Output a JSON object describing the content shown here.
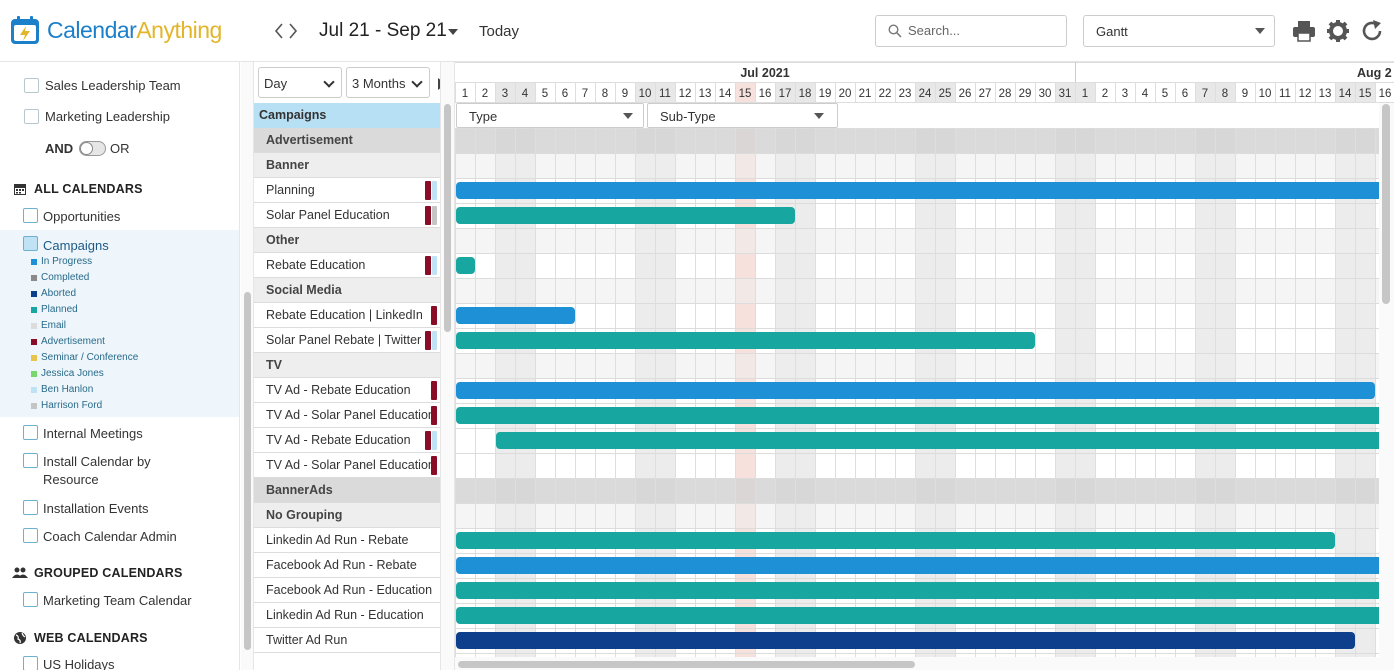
{
  "brand": {
    "part1": "Calendar",
    "part2": "Anything"
  },
  "toolbar": {
    "prev": "‹",
    "next": "›",
    "range": "Jul 21 - Sep 21",
    "today": "Today",
    "search_placeholder": "Search...",
    "view": "Gantt"
  },
  "sidebar": {
    "top_items": [
      "Sales Leadership Team",
      "Marketing Leadership"
    ],
    "and_label": "AND",
    "or_label": "OR",
    "all_calendars": "ALL CALENDARS",
    "calendars": [
      "Opportunities",
      "Campaigns"
    ],
    "legend": [
      {
        "label": "In Progress",
        "color": "#1e90d6"
      },
      {
        "label": "Completed",
        "color": "#8a8a8a"
      },
      {
        "label": "Aborted",
        "color": "#0d3f8c"
      },
      {
        "label": "Planned",
        "color": "#18a6a0"
      },
      {
        "label": "Email",
        "color": "#dcdcdc"
      },
      {
        "label": "Advertisement",
        "color": "#8a0d28"
      },
      {
        "label": "Seminar / Conference",
        "color": "#e8c548"
      },
      {
        "label": "Jessica Jones",
        "color": "#78d86e"
      },
      {
        "label": "Ben Hanlon",
        "color": "#bfe2f4"
      },
      {
        "label": "Harrison Ford",
        "color": "#c5c5c5"
      }
    ],
    "more_calendars": [
      "Internal Meetings",
      "Install Calendar by",
      "Resource",
      "Installation Events",
      "Coach Calendar Admin"
    ],
    "grouped_calendars": "GROUPED CALENDARS",
    "grouped": [
      "Marketing Team Calendar"
    ],
    "web_calendars": "WEB CALENDARS",
    "web": [
      "US Holidays"
    ]
  },
  "gantt": {
    "scale": "Day",
    "span": "3 Months",
    "header": "Campaigns",
    "filters": [
      "Type",
      "Sub-Type"
    ],
    "months": [
      "Jul 2021",
      "Aug 2"
    ],
    "days": [
      "1",
      "2",
      "3",
      "4",
      "5",
      "6",
      "7",
      "8",
      "9",
      "10",
      "11",
      "12",
      "13",
      "14",
      "15",
      "16",
      "17",
      "18",
      "19",
      "20",
      "21",
      "22",
      "23",
      "24",
      "25",
      "26",
      "27",
      "28",
      "29",
      "30",
      "31",
      "1",
      "2",
      "3",
      "4",
      "5",
      "6",
      "7",
      "8",
      "9",
      "10",
      "11",
      "12",
      "13",
      "14",
      "15",
      "16"
    ],
    "weekend_cols": [
      2,
      3,
      9,
      10,
      16,
      17,
      23,
      24,
      30,
      31,
      37,
      38,
      44,
      45
    ],
    "today_col": 14,
    "rows": [
      {
        "label": "Advertisement",
        "kind": "grp1"
      },
      {
        "label": "Banner",
        "kind": "grp2"
      },
      {
        "label": "Planning",
        "kind": "item",
        "marker": "#8a0d28",
        "marker2": "#bfe2f4",
        "bar": {
          "start": 0,
          "end": 46.5,
          "color": "#1e90d6"
        }
      },
      {
        "label": "Solar Panel Education",
        "kind": "item",
        "marker": "#8a0d28",
        "marker2": "#c5c5c5",
        "bar": {
          "start": 0,
          "end": 17,
          "color": "#18a6a0"
        }
      },
      {
        "label": "Other",
        "kind": "grp2"
      },
      {
        "label": "Rebate Education",
        "kind": "item",
        "marker": "#8a0d28",
        "marker2": "#bfe2f4",
        "bar": {
          "start": 0,
          "end": 1,
          "color": "#18a6a0"
        }
      },
      {
        "label": "Social Media",
        "kind": "grp2"
      },
      {
        "label": "Rebate Education | LinkedIn",
        "kind": "item",
        "marker": "#8a0d28",
        "bar": {
          "start": 0,
          "end": 6,
          "color": "#1e90d6"
        }
      },
      {
        "label": "Solar Panel Rebate | Twitter",
        "kind": "item",
        "marker": "#8a0d28",
        "marker2": "#bfe2f4",
        "bar": {
          "start": 0,
          "end": 29,
          "color": "#18a6a0"
        }
      },
      {
        "label": "TV",
        "kind": "grp2"
      },
      {
        "label": "TV Ad - Rebate Education",
        "kind": "item",
        "marker": "#8a0d28",
        "bar": {
          "start": 0,
          "end": 46,
          "color": "#1e90d6"
        }
      },
      {
        "label": "TV Ad - Solar Panel Education",
        "kind": "item",
        "marker": "#8a0d28",
        "bar": {
          "start": 0,
          "end": 46.5,
          "color": "#18a6a0"
        }
      },
      {
        "label": "TV Ad - Rebate Education",
        "kind": "item",
        "marker": "#8a0d28",
        "marker2": "#bfe2f4",
        "bar": {
          "start": 2,
          "end": 46.5,
          "color": "#18a6a0"
        }
      },
      {
        "label": "TV Ad - Solar Panel Education",
        "kind": "item",
        "marker": "#8a0d28",
        "bar": null
      },
      {
        "label": "BannerAds",
        "kind": "grp1"
      },
      {
        "label": "No Grouping",
        "kind": "grp2"
      },
      {
        "label": "Linkedin Ad Run - Rebate",
        "kind": "item",
        "bar": {
          "start": 0,
          "end": 44,
          "color": "#18a6a0"
        }
      },
      {
        "label": "Facebook Ad Run - Rebate",
        "kind": "item",
        "bar": {
          "start": 0,
          "end": 46.5,
          "color": "#1e90d6"
        }
      },
      {
        "label": "Facebook Ad Run - Education",
        "kind": "item",
        "bar": {
          "start": 0,
          "end": 46.5,
          "color": "#18a6a0"
        }
      },
      {
        "label": "Linkedin Ad Run - Education",
        "kind": "item",
        "bar": {
          "start": 0,
          "end": 46.5,
          "color": "#18a6a0"
        }
      },
      {
        "label": "Twitter Ad Run",
        "kind": "item",
        "bar": {
          "start": 0,
          "end": 45,
          "color": "#0d3f8c"
        }
      }
    ]
  }
}
